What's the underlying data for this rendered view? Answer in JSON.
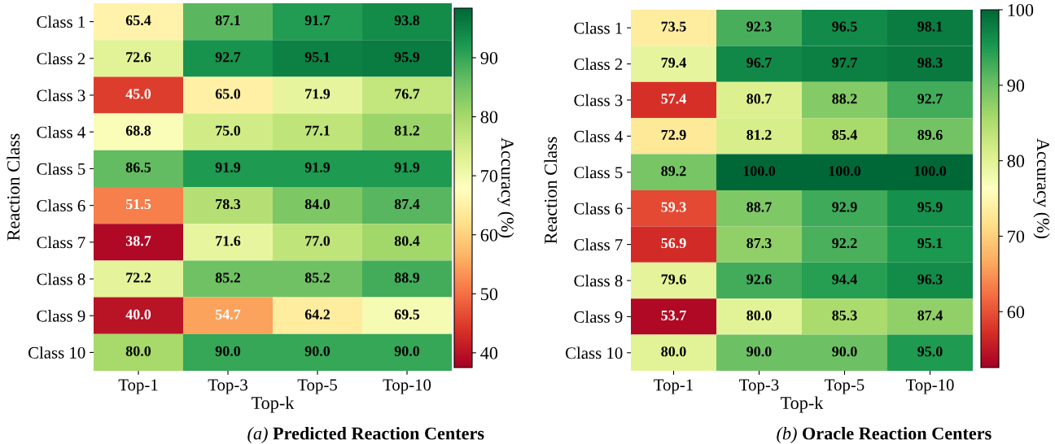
{
  "chart_data": [
    {
      "type": "heatmap",
      "title": "(a) Predicted Reaction Centers",
      "xlabel": "Top-k",
      "ylabel": "Reaction Class",
      "clabel": "Accuracy (%)",
      "categories": [
        "Top-1",
        "Top-3",
        "Top-5",
        "Top-10"
      ],
      "y_categories": [
        "Class 1",
        "Class 2",
        "Class 3",
        "Class 4",
        "Class 5",
        "Class 6",
        "Class 7",
        "Class 8",
        "Class 9",
        "Class 10"
      ],
      "cells": [
        [
          65.4,
          87.1,
          91.7,
          93.8
        ],
        [
          72.6,
          92.7,
          95.1,
          95.9
        ],
        [
          45.0,
          65.0,
          71.9,
          76.7
        ],
        [
          68.8,
          75.0,
          77.1,
          81.2
        ],
        [
          86.5,
          91.9,
          91.9,
          91.9
        ],
        [
          51.5,
          78.3,
          84.0,
          87.4
        ],
        [
          38.7,
          71.6,
          77.0,
          80.4
        ],
        [
          72.2,
          85.2,
          85.2,
          88.9
        ],
        [
          40.0,
          54.7,
          64.2,
          69.5
        ],
        [
          80.0,
          90.0,
          90.0,
          90.0
        ]
      ],
      "cell_labels": [
        [
          "65.4",
          "87.1",
          "91.7",
          "93.8"
        ],
        [
          "72.6",
          "92.7",
          "95.1",
          "95.9"
        ],
        [
          "45.0",
          "65.0",
          "71.9",
          "76.7"
        ],
        [
          "68.8",
          "75.0",
          "77.1",
          "81.2"
        ],
        [
          "86.5",
          "91.9",
          "91.9",
          "91.9"
        ],
        [
          "51.5",
          "78.3",
          "84.0",
          "87.4"
        ],
        [
          "38.7",
          "71.6",
          "77.0",
          "80.4"
        ],
        [
          "72.2",
          "85.2",
          "85.2",
          "88.9"
        ],
        [
          "40.0",
          "54.7",
          "64.2",
          "69.5"
        ],
        [
          "80.0",
          "90.0",
          "90.0",
          "90.0"
        ]
      ],
      "clim": [
        37.5,
        98.4
      ],
      "cticks": [
        40,
        50,
        60,
        70,
        80,
        90
      ]
    },
    {
      "type": "heatmap",
      "title": "(b) Oracle Reaction Centers",
      "xlabel": "Top-k",
      "ylabel": "Reaction Class",
      "clabel": "Accuracy (%)",
      "categories": [
        "Top-1",
        "Top-3",
        "Top-5",
        "Top-10"
      ],
      "y_categories": [
        "Class 1",
        "Class 2",
        "Class 3",
        "Class 4",
        "Class 5",
        "Class 6",
        "Class 7",
        "Class 8",
        "Class 9",
        "Class 10"
      ],
      "cells": [
        [
          73.5,
          92.3,
          96.5,
          98.1
        ],
        [
          79.4,
          96.7,
          97.7,
          98.3
        ],
        [
          57.4,
          80.7,
          88.2,
          92.7
        ],
        [
          72.9,
          81.2,
          85.4,
          89.6
        ],
        [
          89.2,
          100.0,
          100.0,
          100.0
        ],
        [
          59.3,
          88.7,
          92.9,
          95.9
        ],
        [
          56.9,
          87.3,
          92.2,
          95.1
        ],
        [
          79.6,
          92.6,
          94.4,
          96.3
        ],
        [
          53.7,
          80.0,
          85.3,
          87.4
        ],
        [
          80.0,
          90.0,
          90.0,
          95.0
        ]
      ],
      "cell_labels": [
        [
          "73.5",
          "92.3",
          "96.5",
          "98.1"
        ],
        [
          "79.4",
          "96.7",
          "97.7",
          "98.3"
        ],
        [
          "57.4",
          "80.7",
          "88.2",
          "92.7"
        ],
        [
          "72.9",
          "81.2",
          "85.4",
          "89.6"
        ],
        [
          "89.2",
          "100.0",
          "100.0",
          "100.0"
        ],
        [
          "59.3",
          "88.7",
          "92.9",
          "95.9"
        ],
        [
          "56.9",
          "87.3",
          "92.2",
          "95.1"
        ],
        [
          "79.6",
          "92.6",
          "94.4",
          "96.3"
        ],
        [
          "53.7",
          "80.0",
          "85.3",
          "87.4"
        ],
        [
          "80.0",
          "90.0",
          "90.0",
          "95.0"
        ]
      ],
      "clim": [
        52.6,
        100
      ],
      "cticks": [
        60,
        70,
        80,
        90,
        100
      ]
    }
  ]
}
